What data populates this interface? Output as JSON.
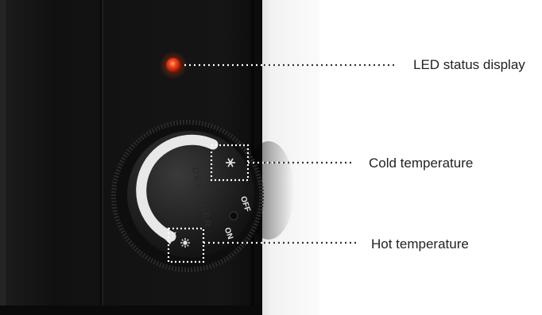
{
  "annotations": {
    "led": {
      "label": "LED status display"
    },
    "cold": {
      "label": "Cold temperature"
    },
    "hot": {
      "label": "Hot temperature"
    }
  },
  "knob": {
    "off_label": "OFF",
    "on_label": "ON",
    "brand_text": "DESIGNER"
  },
  "icons": {
    "cold_icon": "snowflake-icon",
    "hot_icon": "sun-icon"
  },
  "colors": {
    "led": "#e83a1a",
    "panel": "#121212",
    "knob": "#1a1a1a",
    "knob_face": "#262626",
    "arc": "#e6e6e6",
    "wall": "#ededed",
    "dotted_line": "#ffffff"
  }
}
